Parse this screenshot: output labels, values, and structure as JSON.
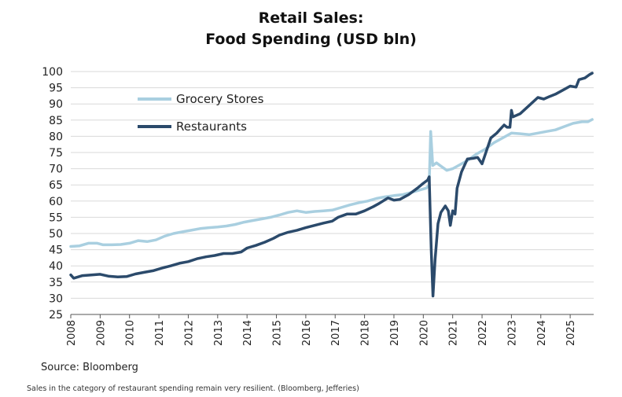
{
  "chart_data": {
    "type": "line",
    "title_line1": "Retail Sales:",
    "title_line2": "Food Spending (USD bln)",
    "xlabel": "",
    "ylabel": "",
    "ylim": [
      25,
      100
    ],
    "y_ticks": [
      "100",
      "95",
      "90",
      "85",
      "80",
      "75",
      "70",
      "65",
      "60",
      "55",
      "50",
      "45",
      "40",
      "35",
      "30",
      "25"
    ],
    "x_ticks": [
      "2008",
      "2009",
      "2010",
      "2011",
      "2012",
      "2013",
      "2014",
      "2015",
      "2016",
      "2017",
      "2018",
      "2019",
      "2020",
      "2021",
      "2022",
      "2023",
      "2024",
      "2025"
    ],
    "legend_position": "top-left",
    "grid": true,
    "series": [
      {
        "name": "Grocery Stores",
        "color": "#a9cfe0",
        "points": [
          [
            2008.0,
            46.0
          ],
          [
            2008.3,
            46.2
          ],
          [
            2008.6,
            47.0
          ],
          [
            2008.9,
            47.0
          ],
          [
            2009.1,
            46.5
          ],
          [
            2009.4,
            46.5
          ],
          [
            2009.7,
            46.6
          ],
          [
            2010.0,
            47.0
          ],
          [
            2010.3,
            47.8
          ],
          [
            2010.6,
            47.5
          ],
          [
            2010.9,
            48.0
          ],
          [
            2011.2,
            49.2
          ],
          [
            2011.5,
            50.0
          ],
          [
            2011.8,
            50.5
          ],
          [
            2012.1,
            51.0
          ],
          [
            2012.4,
            51.5
          ],
          [
            2012.7,
            51.8
          ],
          [
            2013.0,
            52.0
          ],
          [
            2013.3,
            52.3
          ],
          [
            2013.6,
            52.8
          ],
          [
            2013.9,
            53.5
          ],
          [
            2014.2,
            54.0
          ],
          [
            2014.5,
            54.5
          ],
          [
            2014.8,
            55.0
          ],
          [
            2015.1,
            55.7
          ],
          [
            2015.4,
            56.5
          ],
          [
            2015.7,
            57.0
          ],
          [
            2016.0,
            56.5
          ],
          [
            2016.3,
            56.8
          ],
          [
            2016.6,
            57.0
          ],
          [
            2016.9,
            57.2
          ],
          [
            2017.2,
            58.0
          ],
          [
            2017.5,
            58.8
          ],
          [
            2017.8,
            59.5
          ],
          [
            2018.1,
            60.0
          ],
          [
            2018.4,
            60.8
          ],
          [
            2018.7,
            61.3
          ],
          [
            2019.0,
            61.7
          ],
          [
            2019.3,
            62.0
          ],
          [
            2019.6,
            62.7
          ],
          [
            2019.9,
            63.5
          ],
          [
            2020.1,
            64.0
          ],
          [
            2020.2,
            65.0
          ],
          [
            2020.25,
            81.5
          ],
          [
            2020.32,
            71.0
          ],
          [
            2020.45,
            71.8
          ],
          [
            2020.6,
            70.8
          ],
          [
            2020.8,
            69.5
          ],
          [
            2021.0,
            70.0
          ],
          [
            2021.2,
            71.0
          ],
          [
            2021.5,
            72.5
          ],
          [
            2021.8,
            74.5
          ],
          [
            2022.1,
            76.0
          ],
          [
            2022.4,
            78.0
          ],
          [
            2022.7,
            79.5
          ],
          [
            2023.0,
            81.0
          ],
          [
            2023.3,
            80.8
          ],
          [
            2023.6,
            80.5
          ],
          [
            2023.9,
            81.0
          ],
          [
            2024.2,
            81.5
          ],
          [
            2024.5,
            82.0
          ],
          [
            2024.8,
            83.0
          ],
          [
            2025.1,
            84.0
          ],
          [
            2025.4,
            84.5
          ],
          [
            2025.6,
            84.5
          ],
          [
            2025.75,
            85.2
          ]
        ]
      },
      {
        "name": "Restaurants",
        "color": "#2b4a6b",
        "points": [
          [
            2008.0,
            37.2
          ],
          [
            2008.1,
            36.2
          ],
          [
            2008.4,
            37.0
          ],
          [
            2008.7,
            37.2
          ],
          [
            2009.0,
            37.4
          ],
          [
            2009.3,
            36.8
          ],
          [
            2009.6,
            36.6
          ],
          [
            2009.9,
            36.7
          ],
          [
            2010.2,
            37.5
          ],
          [
            2010.5,
            38.0
          ],
          [
            2010.8,
            38.5
          ],
          [
            2011.1,
            39.3
          ],
          [
            2011.4,
            40.0
          ],
          [
            2011.7,
            40.8
          ],
          [
            2012.0,
            41.3
          ],
          [
            2012.3,
            42.2
          ],
          [
            2012.6,
            42.8
          ],
          [
            2012.9,
            43.2
          ],
          [
            2013.2,
            43.8
          ],
          [
            2013.5,
            43.8
          ],
          [
            2013.8,
            44.3
          ],
          [
            2014.0,
            45.5
          ],
          [
            2014.3,
            46.3
          ],
          [
            2014.6,
            47.3
          ],
          [
            2014.9,
            48.5
          ],
          [
            2015.1,
            49.5
          ],
          [
            2015.4,
            50.4
          ],
          [
            2015.7,
            51.0
          ],
          [
            2016.0,
            51.8
          ],
          [
            2016.3,
            52.5
          ],
          [
            2016.6,
            53.2
          ],
          [
            2016.9,
            53.8
          ],
          [
            2017.1,
            55.0
          ],
          [
            2017.4,
            56.0
          ],
          [
            2017.7,
            56.0
          ],
          [
            2018.0,
            57.0
          ],
          [
            2018.3,
            58.3
          ],
          [
            2018.5,
            59.3
          ],
          [
            2018.8,
            61.0
          ],
          [
            2019.0,
            60.3
          ],
          [
            2019.2,
            60.5
          ],
          [
            2019.5,
            62.0
          ],
          [
            2019.8,
            64.0
          ],
          [
            2020.0,
            65.5
          ],
          [
            2020.15,
            66.5
          ],
          [
            2020.2,
            67.5
          ],
          [
            2020.27,
            45.0
          ],
          [
            2020.33,
            30.7
          ],
          [
            2020.4,
            42.0
          ],
          [
            2020.5,
            53.0
          ],
          [
            2020.6,
            56.5
          ],
          [
            2020.75,
            58.5
          ],
          [
            2020.85,
            57.0
          ],
          [
            2020.92,
            52.5
          ],
          [
            2021.0,
            57.0
          ],
          [
            2021.08,
            56.0
          ],
          [
            2021.15,
            64.0
          ],
          [
            2021.3,
            69.0
          ],
          [
            2021.5,
            73.0
          ],
          [
            2021.7,
            73.2
          ],
          [
            2021.85,
            73.5
          ],
          [
            2022.0,
            71.5
          ],
          [
            2022.15,
            75.5
          ],
          [
            2022.3,
            79.5
          ],
          [
            2022.5,
            81.0
          ],
          [
            2022.6,
            82.0
          ],
          [
            2022.75,
            83.5
          ],
          [
            2022.85,
            82.8
          ],
          [
            2022.95,
            82.8
          ],
          [
            2023.0,
            88.0
          ],
          [
            2023.05,
            86.0
          ],
          [
            2023.3,
            87.0
          ],
          [
            2023.6,
            89.5
          ],
          [
            2023.9,
            92.0
          ],
          [
            2024.1,
            91.5
          ],
          [
            2024.3,
            92.3
          ],
          [
            2024.5,
            93.0
          ],
          [
            2024.8,
            94.5
          ],
          [
            2025.0,
            95.5
          ],
          [
            2025.2,
            95.2
          ],
          [
            2025.3,
            97.5
          ],
          [
            2025.5,
            98.0
          ],
          [
            2025.65,
            99.0
          ],
          [
            2025.75,
            99.5
          ]
        ]
      }
    ]
  },
  "source_text": "Source: Bloomberg",
  "caption_text": "Sales in the category of restaurant spending remain very resilient. (Bloomberg, Jefferies)"
}
